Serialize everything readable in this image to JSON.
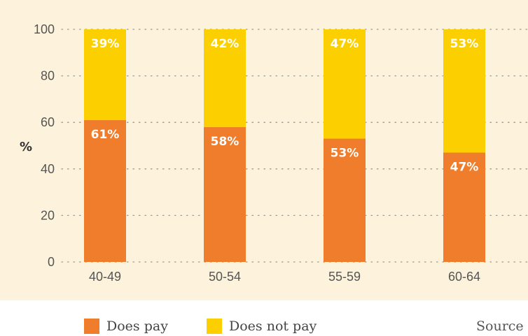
{
  "chart_data": {
    "type": "bar",
    "stacked": true,
    "categories": [
      "40-49",
      "50-54",
      "55-59",
      "60-64"
    ],
    "series": [
      {
        "name": "Does pay",
        "values": [
          61,
          58,
          53,
          47
        ],
        "color": "#ef7d2b"
      },
      {
        "name": "Does not pay",
        "values": [
          39,
          42,
          47,
          53
        ],
        "color": "#fcd000"
      }
    ],
    "value_labels": {
      "Does pay": [
        "61%",
        "58%",
        "53%",
        "47%"
      ],
      "Does not pay": [
        "39%",
        "42%",
        "47%",
        "53%"
      ]
    },
    "ylabel": "%",
    "ylim": [
      0,
      100
    ],
    "yticks": [
      0,
      20,
      40,
      60,
      80,
      100
    ],
    "grid": "dotted horizontal",
    "legend_position": "bottom-left"
  },
  "legend": {
    "does_pay": "Does pay",
    "does_not_pay": "Does not pay"
  },
  "source": "Source"
}
